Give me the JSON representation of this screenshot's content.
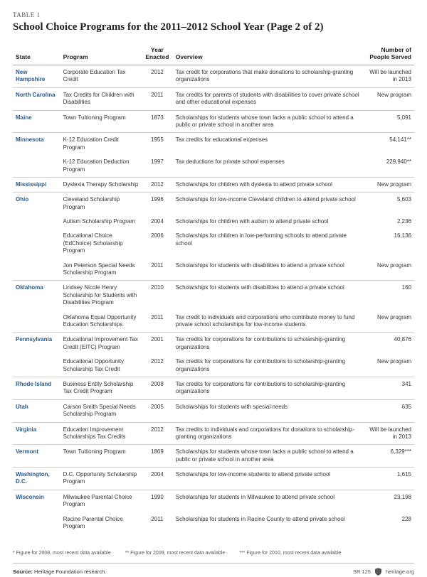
{
  "table_label": "TABLE 1",
  "title": "School Choice Programs for the 2011–2012 School Year (Page 2 of 2)",
  "columns": {
    "state": "State",
    "program": "Program",
    "year": "Year Enacted",
    "overview": "Overview",
    "served": "Number of People Served"
  },
  "rows": [
    {
      "state": "New Hampshire",
      "program": "Corporate Education Tax Credit",
      "year": "2012",
      "overview": "Tax credit for corporations that make donations to scholarship-granting organizations",
      "served": "Will be launched in 2013",
      "group_start": true
    },
    {
      "state": "North Carolina",
      "program": "Tax Credits for Children with Disabilities",
      "year": "2011",
      "overview": "Tax credits for parents of students with disabilities to cover private school and other educational expenses",
      "served": "New program",
      "group_start": true
    },
    {
      "state": "Maine",
      "program": "Town Tuitioning Program",
      "year": "1873",
      "overview": "Scholarships for students whose town lacks a public school to attend a public or private school in another area",
      "served": "5,091",
      "group_start": true
    },
    {
      "state": "Minnesota",
      "program": "K-12 Education Credit Program",
      "year": "1955",
      "overview": "Tax credits for educational expenses",
      "served": "54,141**",
      "group_start": true
    },
    {
      "state": "",
      "program": "K-12 Education Deduction Program",
      "year": "1997",
      "overview": "Tax deductions for private school expenses",
      "served": "229,940**",
      "group_start": false
    },
    {
      "state": "Mississippi",
      "program": "Dyslexia Therapy Scholarship",
      "year": "2012",
      "overview": "Scholarships for children with dyslexia to attend private school",
      "served": "New program",
      "group_start": true
    },
    {
      "state": "Ohio",
      "program": "Cleveland Scholarship Program",
      "year": "1996",
      "overview": "Scholarships for low-income Cleveland children to attend private school",
      "served": "5,603",
      "group_start": true
    },
    {
      "state": "",
      "program": "Autism Scholarship Program",
      "year": "2004",
      "overview": "Scholarships for children with autism to attend private school",
      "served": "2,236",
      "group_start": false
    },
    {
      "state": "",
      "program": "Educational Choice (EdChoice) Scholarship Program",
      "year": "2006",
      "overview": "Scholarships for children in low-performing schools to attend private school",
      "served": "16,136",
      "group_start": false
    },
    {
      "state": "",
      "program": "Jon Peterson Special Needs Scholarship Program",
      "year": "2011",
      "overview": "Scholarships for students with disabilities to attend a private school",
      "served": "New program",
      "group_start": false
    },
    {
      "state": "Oklahoma",
      "program": "Lindsey Nicole Henry Scholarship for Students with Disabilities Program",
      "year": "2010",
      "overview": "Scholarships for students with disabilities to attend a private school",
      "served": "160",
      "group_start": true
    },
    {
      "state": "",
      "program": "Oklahoma Equal Opportunity Education Scholarships",
      "year": "2011",
      "overview": "Tax credit to individuals and corporations who contribute money to fund private school scholarships for low-income students",
      "served": "New program",
      "group_start": false
    },
    {
      "state": "Pennsylvania",
      "program": "Educational Improvement Tax Credit (EITC) Program",
      "year": "2001",
      "overview": "Tax credits for corporations for contributions to scholarship-granting organizations",
      "served": "40,876",
      "group_start": true
    },
    {
      "state": "",
      "program": "Educational Opportunity Scholarship Tax Credit",
      "year": "2012",
      "overview": "Tax credits for corporations for contributions to scholarship-granting organizations",
      "served": "New program",
      "group_start": false
    },
    {
      "state": "Rhode Island",
      "program": "Business Entity Scholarship Tax Credit Program",
      "year": "2008",
      "overview": "Tax credits for corporations for contributions to scholarship-granting organizations",
      "served": "341",
      "group_start": true
    },
    {
      "state": "Utah",
      "program": "Carson Smith Special Needs Scholarship Program",
      "year": "2005",
      "overview": "Scholarships for students with special needs",
      "served": "635",
      "group_start": true
    },
    {
      "state": "Virginia",
      "program": "Education Improvement Scholarships Tax Credits",
      "year": "2012",
      "overview": "Tax credits to individuals and corporations for donations to scholarship-granting organizations",
      "served": "Will be launched in 2013",
      "group_start": true
    },
    {
      "state": "Vermont",
      "program": "Town Tuitioning Program",
      "year": "1869",
      "overview": "Scholarships for students whose town lacks a public school to attend a public or private school in another area",
      "served": "6,329***",
      "group_start": true
    },
    {
      "state": "Washington, D.C.",
      "program": "D.C. Opportunity Scholarship Program",
      "year": "2004",
      "overview": "Scholarships for low-income students to attend private school",
      "served": "1,615",
      "group_start": true
    },
    {
      "state": "Wisconsin",
      "program": "Milwaukee Parental Choice Program",
      "year": "1990",
      "overview": "Scholarships for students in Milwaukee to attend private school",
      "served": "23,198",
      "group_start": true
    },
    {
      "state": "",
      "program": "Racine Parental Choice Program",
      "year": "2011",
      "overview": "Scholarships for students in Racine County to attend private school",
      "served": "228",
      "group_start": false
    }
  ],
  "footnotes": [
    "* Figure for 2008, most recent data available",
    "** Figure for 2009, most recent data available",
    "*** Figure for 2010, most recent data available"
  ],
  "source_label": "Source:",
  "source_text": "Heritage Foundation research.",
  "sr_code": "SR 125",
  "site": "heritage.org",
  "colors": {
    "state_link": "#2a5a8a",
    "text": "#333333",
    "border": "#cccccc"
  }
}
